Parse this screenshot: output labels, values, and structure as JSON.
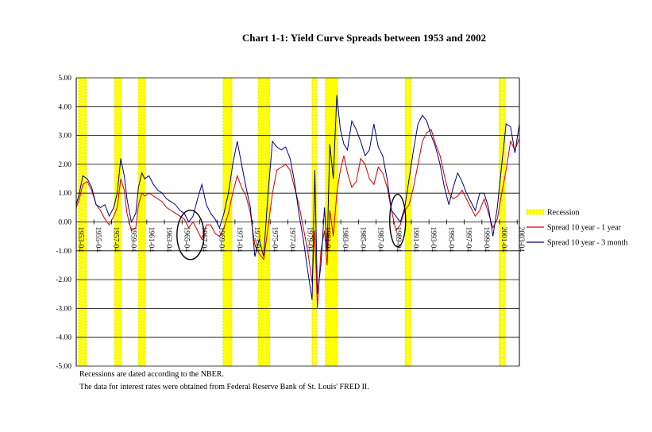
{
  "chart_data": {
    "type": "line",
    "title": "Chart 1-1: Yield Curve Spreads between 1953 and 2002",
    "xlabel": "",
    "ylabel": "",
    "ylim": [
      -5,
      5
    ],
    "xlim": [
      1953.25,
      2003.5
    ],
    "y_ticks": [
      "5.00",
      "4.00",
      "3.00",
      "2.00",
      "1.00",
      "0.00",
      "-1.00",
      "-2.00",
      "-3.00",
      "-4.00",
      "-5.00"
    ],
    "x_ticks": [
      "1953-04",
      "1955-04",
      "1957-04",
      "1959-04",
      "1961-04",
      "1963-04",
      "1965-04",
      "1967-04",
      "1969-04",
      "1971-04",
      "1973-04",
      "1975-04",
      "1977-04",
      "1979-04",
      "1981-04",
      "1983-04",
      "1985-04",
      "1987-04",
      "1989-04",
      "1991-04",
      "1993-04",
      "1995-04",
      "1997-04",
      "1999-04",
      "2001-04",
      "2003-04"
    ],
    "recessions": [
      [
        1953.5,
        1954.4
      ],
      [
        1957.6,
        1958.35
      ],
      [
        1960.3,
        1961.1
      ],
      [
        1969.9,
        1970.9
      ],
      [
        1973.9,
        1975.2
      ],
      [
        1980.0,
        1980.5
      ],
      [
        1981.5,
        1982.9
      ],
      [
        1990.55,
        1991.2
      ],
      [
        2001.2,
        2001.9
      ]
    ],
    "series": [
      {
        "name": "Spread 10 year - 1 year",
        "color": "#d00000",
        "x": [
          1953.25,
          1953.6,
          1954.0,
          1954.5,
          1955.0,
          1955.5,
          1956.0,
          1956.5,
          1957.0,
          1957.5,
          1957.9,
          1958.3,
          1958.7,
          1959.0,
          1959.5,
          1960.0,
          1960.3,
          1960.7,
          1961.0,
          1961.5,
          1962.0,
          1962.5,
          1963.0,
          1963.5,
          1964.0,
          1964.5,
          1965.0,
          1965.5,
          1966.0,
          1966.5,
          1967.0,
          1967.5,
          1968.0,
          1968.5,
          1969.0,
          1969.5,
          1970.0,
          1970.5,
          1971.0,
          1971.5,
          1972.0,
          1972.5,
          1973.0,
          1973.5,
          1974.0,
          1974.5,
          1975.0,
          1975.5,
          1976.0,
          1976.5,
          1977.0,
          1977.5,
          1978.0,
          1978.5,
          1979.0,
          1979.5,
          1980.0,
          1980.3,
          1980.6,
          1981.0,
          1981.4,
          1981.7,
          1982.0,
          1982.4,
          1982.8,
          1983.2,
          1983.6,
          1984.0,
          1984.5,
          1985.0,
          1985.5,
          1986.0,
          1986.5,
          1987.0,
          1987.5,
          1988.0,
          1988.5,
          1989.0,
          1989.5,
          1990.0,
          1990.5,
          1991.0,
          1991.5,
          1992.0,
          1992.5,
          1993.0,
          1993.5,
          1994.0,
          1994.5,
          1995.0,
          1995.5,
          1996.0,
          1996.5,
          1997.0,
          1997.5,
          1998.0,
          1998.5,
          1999.0,
          1999.5,
          2000.0,
          2000.5,
          2001.0,
          2001.5,
          2002.0,
          2002.5,
          2003.0,
          2003.5
        ],
        "values": [
          0.5,
          0.8,
          1.3,
          1.4,
          1.1,
          0.6,
          0.4,
          0.1,
          -0.1,
          0.2,
          0.5,
          1.5,
          1.1,
          0.3,
          -0.3,
          -0.2,
          0.6,
          1.0,
          0.9,
          1.0,
          0.9,
          0.8,
          0.7,
          0.5,
          0.4,
          0.3,
          0.2,
          0.1,
          -0.2,
          0.0,
          -0.3,
          -0.6,
          -0.1,
          -0.1,
          -0.4,
          -0.5,
          -0.2,
          0.3,
          1.0,
          1.6,
          1.2,
          0.9,
          0.3,
          -0.8,
          -1.1,
          -1.3,
          -0.2,
          1.0,
          1.8,
          1.9,
          2.0,
          1.8,
          1.2,
          0.6,
          -0.2,
          -1.0,
          -2.1,
          -0.3,
          -3.0,
          -1.0,
          -0.3,
          -1.5,
          0.4,
          -0.5,
          1.0,
          1.8,
          2.3,
          1.7,
          1.2,
          1.4,
          2.2,
          2.0,
          1.5,
          1.3,
          1.9,
          1.7,
          1.2,
          0.4,
          -0.3,
          -0.1,
          0.4,
          0.6,
          1.2,
          2.0,
          2.8,
          3.1,
          3.2,
          2.7,
          2.3,
          1.6,
          1.0,
          0.8,
          0.9,
          1.1,
          0.8,
          0.5,
          0.2,
          0.4,
          0.8,
          0.3,
          -0.2,
          0.1,
          1.0,
          1.8,
          2.8,
          2.5,
          2.9
        ]
      },
      {
        "name": "Spread 10 year - 3 month",
        "color": "#000080",
        "x": [
          1953.25,
          1953.6,
          1954.0,
          1954.5,
          1955.0,
          1955.5,
          1956.0,
          1956.5,
          1957.0,
          1957.5,
          1957.9,
          1958.3,
          1958.7,
          1959.0,
          1959.5,
          1960.0,
          1960.3,
          1960.7,
          1961.0,
          1961.5,
          1962.0,
          1962.5,
          1963.0,
          1963.5,
          1964.0,
          1964.5,
          1965.0,
          1965.5,
          1966.0,
          1966.5,
          1967.0,
          1967.5,
          1968.0,
          1968.5,
          1969.0,
          1969.5,
          1970.0,
          1970.5,
          1971.0,
          1971.5,
          1972.0,
          1972.5,
          1973.0,
          1973.5,
          1974.0,
          1974.5,
          1975.0,
          1975.5,
          1976.0,
          1976.5,
          1977.0,
          1977.5,
          1978.0,
          1978.5,
          1979.0,
          1979.5,
          1980.0,
          1980.3,
          1980.6,
          1981.0,
          1981.4,
          1981.7,
          1982.0,
          1982.4,
          1982.8,
          1983.2,
          1983.6,
          1984.0,
          1984.5,
          1985.0,
          1985.5,
          1986.0,
          1986.5,
          1987.0,
          1987.5,
          1988.0,
          1988.5,
          1989.0,
          1989.5,
          1990.0,
          1990.5,
          1991.0,
          1991.5,
          1992.0,
          1992.5,
          1993.0,
          1993.5,
          1994.0,
          1994.5,
          1995.0,
          1995.5,
          1996.0,
          1996.5,
          1997.0,
          1997.5,
          1998.0,
          1998.5,
          1999.0,
          1999.5,
          2000.0,
          2000.5,
          2001.0,
          2001.5,
          2002.0,
          2002.5,
          2003.0,
          2003.5
        ],
        "values": [
          0.6,
          1.0,
          1.6,
          1.5,
          1.2,
          0.6,
          0.5,
          0.6,
          0.2,
          0.5,
          1.0,
          2.2,
          1.6,
          0.8,
          0.0,
          0.3,
          1.2,
          1.7,
          1.5,
          1.6,
          1.3,
          1.1,
          1.0,
          0.8,
          0.7,
          0.6,
          0.4,
          0.3,
          0.0,
          0.2,
          0.8,
          1.3,
          0.6,
          0.3,
          0.1,
          -0.2,
          0.3,
          1.0,
          2.0,
          2.8,
          2.0,
          1.2,
          0.5,
          -1.2,
          -0.6,
          -1.2,
          1.0,
          2.8,
          2.6,
          2.5,
          2.6,
          2.2,
          1.4,
          0.3,
          -0.6,
          -1.7,
          -2.7,
          1.8,
          -2.5,
          -1.5,
          0.5,
          -1.0,
          2.7,
          1.5,
          4.4,
          3.2,
          2.7,
          2.5,
          3.5,
          3.2,
          2.8,
          2.3,
          2.5,
          3.4,
          2.6,
          2.3,
          1.5,
          0.4,
          0.2,
          0.0,
          0.5,
          1.5,
          2.5,
          3.4,
          3.7,
          3.5,
          3.0,
          2.6,
          2.0,
          1.2,
          0.6,
          1.2,
          1.7,
          1.4,
          1.0,
          0.7,
          0.4,
          1.0,
          1.0,
          0.5,
          -0.5,
          0.5,
          2.0,
          3.4,
          3.3,
          2.4,
          3.4
        ]
      }
    ],
    "legend": [
      "Recession",
      "Spread 10 year - 1 year",
      "Spread 10 year - 3 month"
    ],
    "legend_position": "right",
    "grid": true
  },
  "colors": {
    "recession": "#ffff00",
    "recession_border": "#e6e600",
    "grid": "#000000"
  },
  "notes": {
    "line1": "Recessions are dated according to the NBER.",
    "line2": "The data for interest rates were obtained from Federal Reserve Bank of St. Louis' FRED II."
  }
}
